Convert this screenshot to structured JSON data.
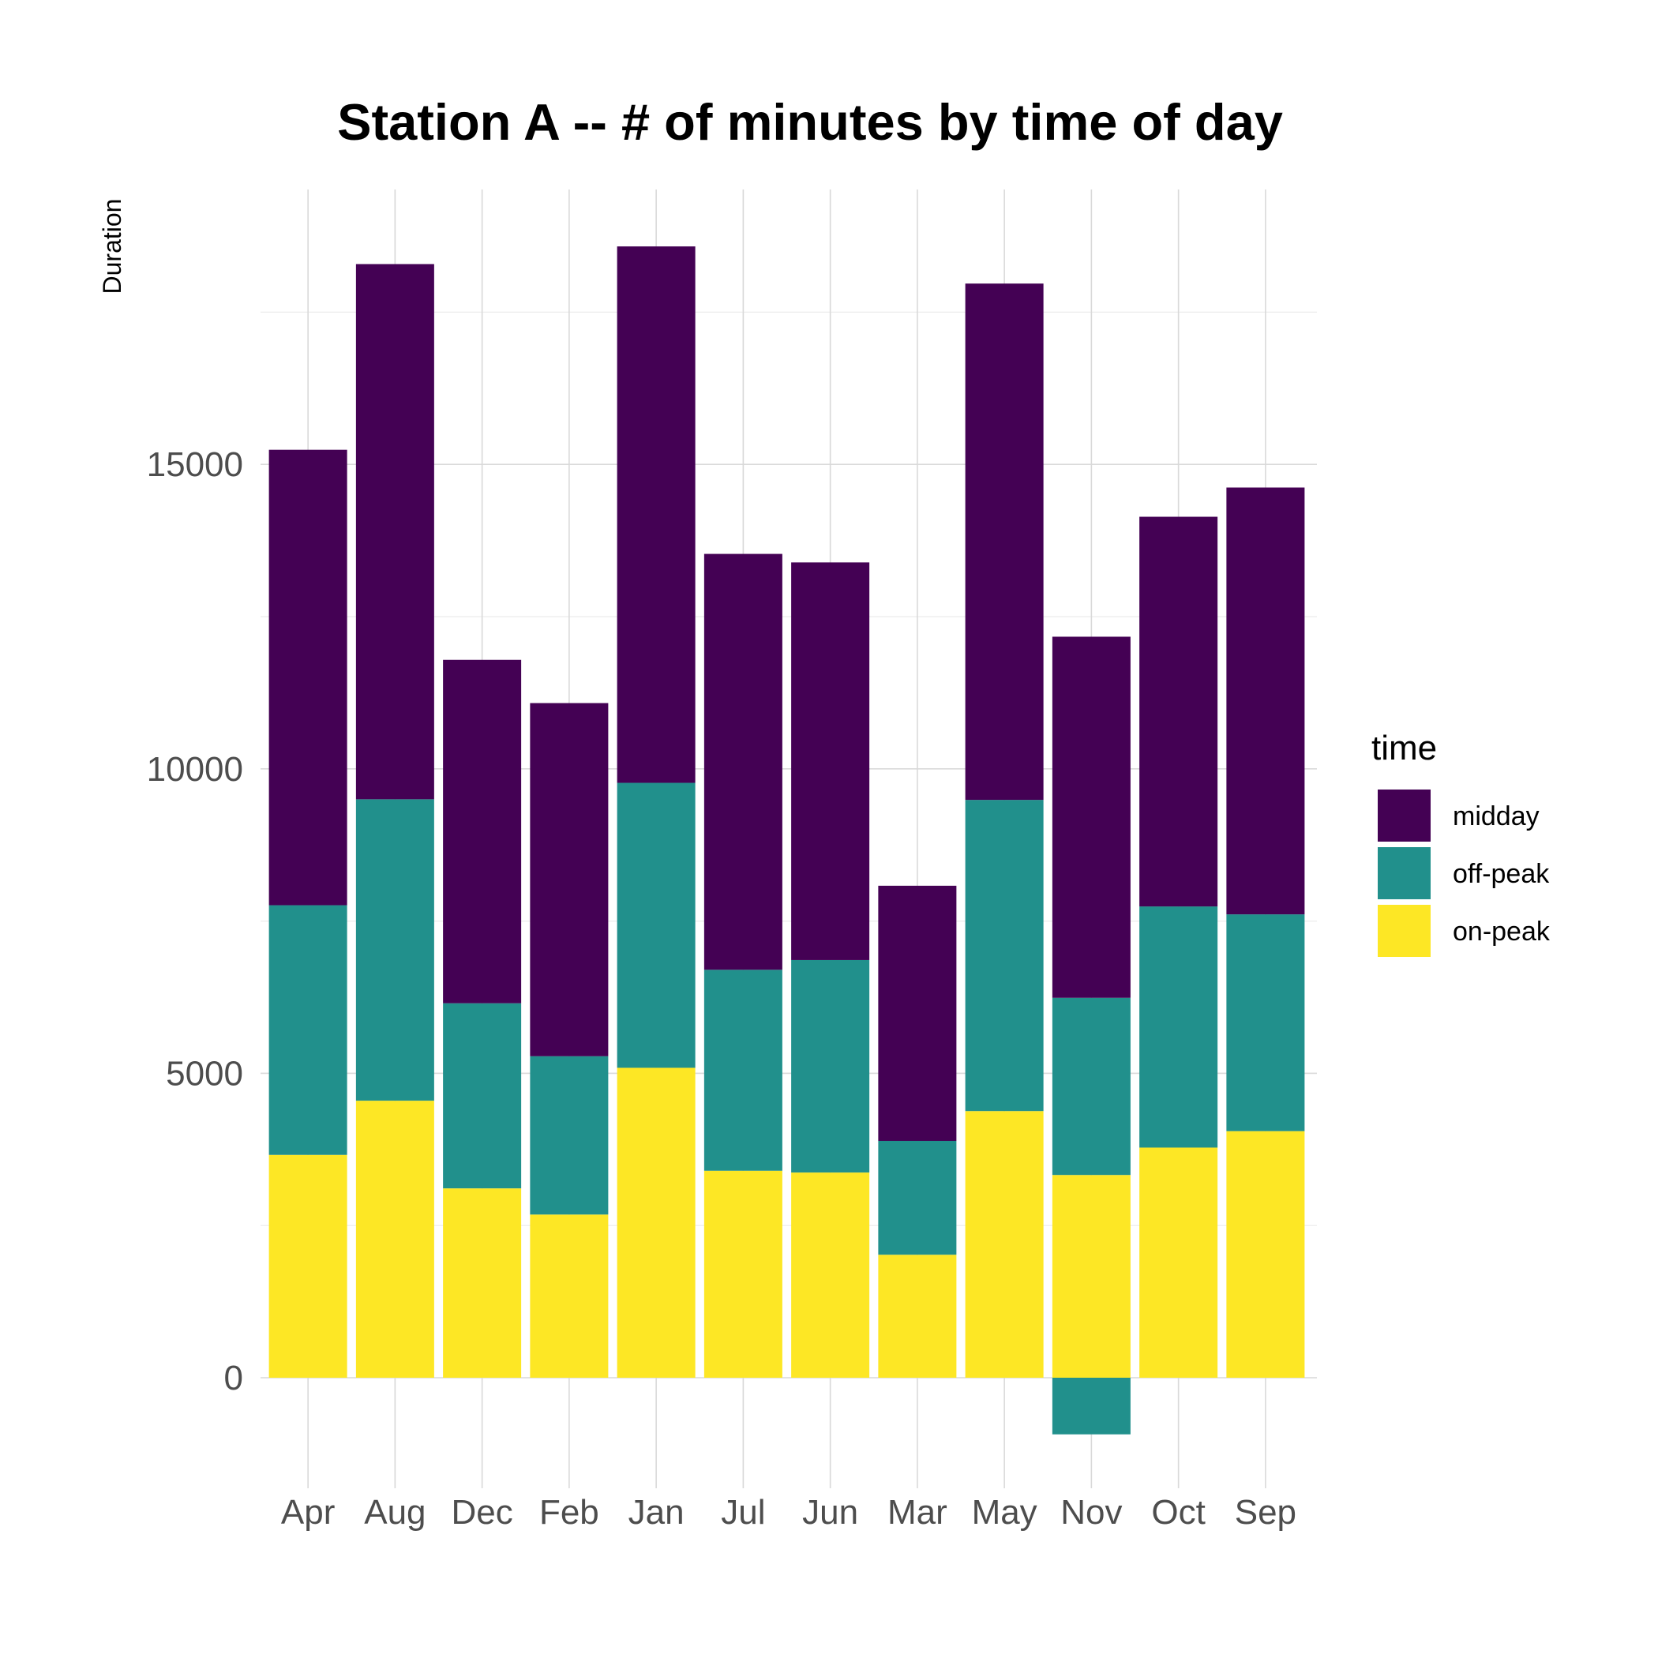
{
  "chart_data": {
    "type": "bar",
    "stacked": true,
    "title": "Station A -- # of minutes by time of day",
    "xlabel": "",
    "ylabel": "Duration",
    "categories": [
      "Apr",
      "Aug",
      "Dec",
      "Feb",
      "Jan",
      "Jul",
      "Jun",
      "Mar",
      "May",
      "Nov",
      "Oct",
      "Sep"
    ],
    "ylim": [
      -1600,
      20000
    ],
    "y_ticks": [
      0,
      5000,
      10000,
      15000
    ],
    "y_tick_labels": [
      "0",
      "5000",
      "10000",
      "15000"
    ],
    "grid": true,
    "legend_title": "time",
    "legend_position": "right",
    "series": [
      {
        "name": "on-peak",
        "color": "#FDE725",
        "values": [
          3660,
          4550,
          3110,
          2680,
          5090,
          3400,
          3370,
          2020,
          4380,
          3330,
          3780,
          4050
        ]
      },
      {
        "name": "off-peak",
        "color": "#21908C",
        "values": [
          4100,
          4950,
          3040,
          2600,
          4680,
          3300,
          3490,
          1870,
          5110,
          2910,
          3960,
          3560
        ],
        "negative_part": [
          0,
          0,
          0,
          0,
          0,
          0,
          0,
          0,
          0,
          -930,
          0,
          0
        ]
      },
      {
        "name": "midday",
        "color": "#440154",
        "values": [
          7480,
          8790,
          5640,
          5800,
          8810,
          6830,
          6530,
          4190,
          8480,
          5930,
          6400,
          7010
        ]
      }
    ],
    "legend_order": [
      "midday",
      "off-peak",
      "on-peak"
    ]
  }
}
